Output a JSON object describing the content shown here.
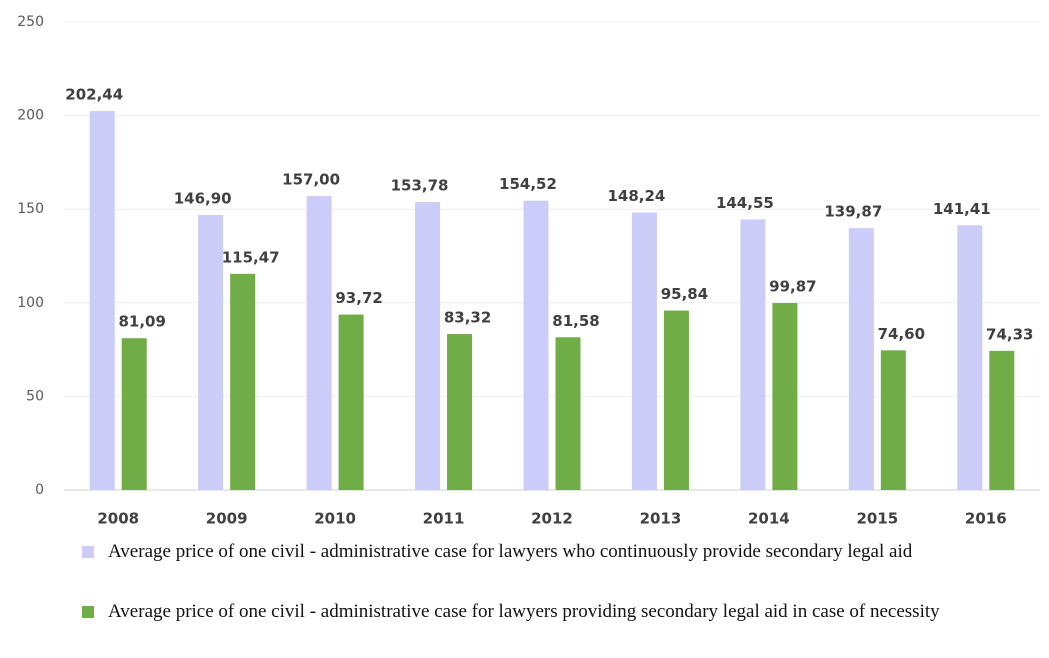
{
  "chart_data": {
    "type": "bar",
    "categories": [
      "2008",
      "2009",
      "2010",
      "2011",
      "2012",
      "2013",
      "2014",
      "2015",
      "2016"
    ],
    "series": [
      {
        "name": "Average price of one civil - administrative case for lawyers who continuously provide secondary legal aid",
        "color": "#ccccf8",
        "values": [
          202.44,
          146.9,
          157.0,
          153.78,
          154.52,
          148.24,
          144.55,
          139.87,
          141.41
        ],
        "value_labels": [
          "202,44",
          "146,90",
          "157,00",
          "153,78",
          "154,52",
          "148,24",
          "144,55",
          "139,87",
          "141,41"
        ]
      },
      {
        "name": "Average price of one civil - administrative case for lawyers providing secondary legal aid in case of necessity",
        "color": "#70ad47",
        "values": [
          81.09,
          115.47,
          93.72,
          83.32,
          81.58,
          95.84,
          99.87,
          74.6,
          74.33
        ],
        "value_labels": [
          "81,09",
          "115,47",
          "93,72",
          "83,32",
          "81,58",
          "95,84",
          "99,87",
          "74,60",
          "74,33"
        ]
      }
    ],
    "ylim": [
      0,
      250
    ],
    "yticks": [
      0,
      50,
      100,
      150,
      200,
      250
    ],
    "grid": true
  }
}
